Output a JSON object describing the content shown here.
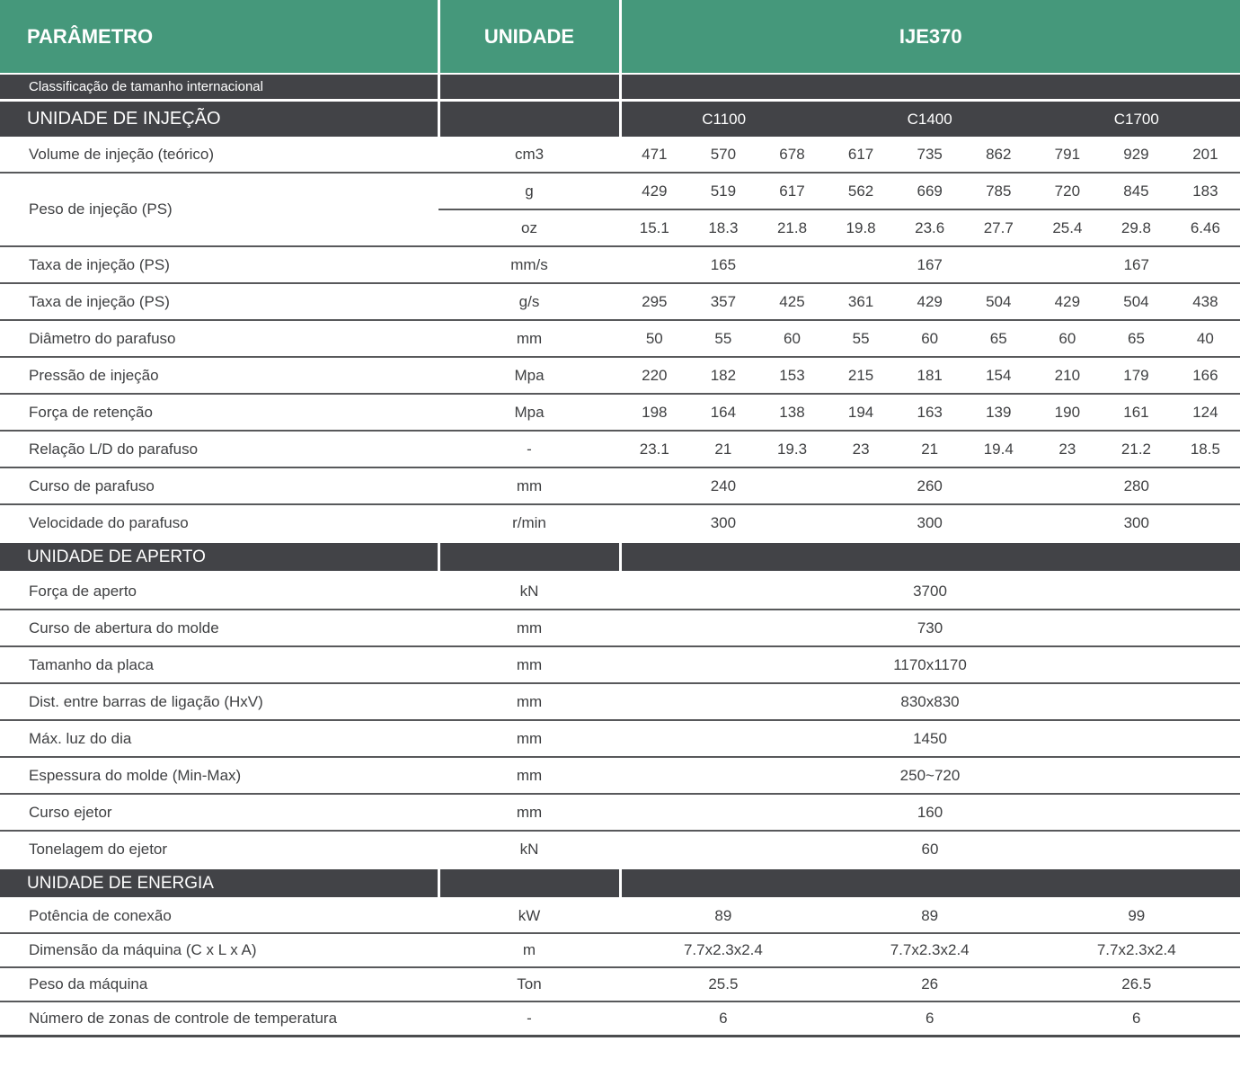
{
  "colors": {
    "header_green": "#45987B",
    "section_dark": "#424347",
    "row_line": "#58595B",
    "text": "#3F4042",
    "bottom_line": "#4B4C4E"
  },
  "header": {
    "parametro": "PARÂMETRO",
    "unidade": "UNIDADE",
    "model": "IJE370"
  },
  "rows": [
    {
      "type": "subheader",
      "label": "Classificação de tamanho internacional"
    },
    {
      "type": "group_header",
      "label": "UNIDADE DE INJEÇÃO",
      "groups": [
        "C1100",
        "C1400",
        "C1700"
      ]
    },
    {
      "type": "data",
      "label": "Volume de injeção (teórico)",
      "unit": "cm3",
      "span": "cell",
      "values": [
        "471",
        "570",
        "678",
        "617",
        "735",
        "862",
        "791",
        "929",
        "201"
      ]
    },
    {
      "type": "data_multi",
      "label": "Peso de injeção (PS)",
      "subrows": [
        {
          "unit": "g",
          "span": "cell",
          "values": [
            "429",
            "519",
            "617",
            "562",
            "669",
            "785",
            "720",
            "845",
            "183"
          ]
        },
        {
          "unit": "oz",
          "span": "cell",
          "values": [
            "15.1",
            "18.3",
            "21.8",
            "19.8",
            "23.6",
            "27.7",
            "25.4",
            "29.8",
            "6.46"
          ]
        }
      ]
    },
    {
      "type": "data",
      "label": "Taxa de injeção (PS)",
      "unit": "mm/s",
      "span": "group",
      "values": [
        "165",
        "167",
        "167"
      ]
    },
    {
      "type": "data",
      "label": "Taxa de injeção (PS)",
      "unit": "g/s",
      "span": "cell",
      "values": [
        "295",
        "357",
        "425",
        "361",
        "429",
        "504",
        "429",
        "504",
        "438"
      ]
    },
    {
      "type": "data",
      "label": "Diâmetro do parafuso",
      "unit": "mm",
      "span": "cell",
      "values": [
        "50",
        "55",
        "60",
        "55",
        "60",
        "65",
        "60",
        "65",
        "40"
      ]
    },
    {
      "type": "data",
      "label": "Pressão de injeção",
      "unit": "Mpa",
      "span": "cell",
      "values": [
        "220",
        "182",
        "153",
        "215",
        "181",
        "154",
        "210",
        "179",
        "166"
      ]
    },
    {
      "type": "data",
      "label": "Força de retenção",
      "unit": "Mpa",
      "span": "cell",
      "values": [
        "198",
        "164",
        "138",
        "194",
        "163",
        "139",
        "190",
        "161",
        "124"
      ]
    },
    {
      "type": "data",
      "label": "Relação L/D do parafuso",
      "unit": "-",
      "span": "cell",
      "values": [
        "23.1",
        "21",
        "19.3",
        "23",
        "21",
        "19.4",
        "23",
        "21.2",
        "18.5"
      ]
    },
    {
      "type": "data",
      "label": "Curso de parafuso",
      "unit": "mm",
      "span": "group",
      "values": [
        "240",
        "260",
        "280"
      ]
    },
    {
      "type": "data",
      "label": "Velocidade do parafuso",
      "unit": "r/min",
      "span": "group",
      "values": [
        "300",
        "300",
        "300"
      ],
      "no_line": true
    },
    {
      "type": "section",
      "label": "UNIDADE DE APERTO"
    },
    {
      "type": "data",
      "label": "Força de aperto",
      "unit": "kN",
      "span": "full",
      "values": [
        "3700"
      ]
    },
    {
      "type": "data",
      "label": "Curso de abertura do molde",
      "unit": "mm",
      "span": "full",
      "values": [
        "730"
      ]
    },
    {
      "type": "data",
      "label": "Tamanho da placa",
      "unit": "mm",
      "span": "full",
      "values": [
        "1170x1170"
      ]
    },
    {
      "type": "data",
      "label": "Dist. entre barras de ligação (HxV)",
      "unit": "mm",
      "span": "full",
      "values": [
        "830x830"
      ]
    },
    {
      "type": "data",
      "label": "Máx. luz do dia",
      "unit": "mm",
      "span": "full",
      "values": [
        "1450"
      ]
    },
    {
      "type": "data",
      "label": "Espessura do molde (Min-Max)",
      "unit": "mm",
      "span": "full",
      "values": [
        "250~720"
      ]
    },
    {
      "type": "data",
      "label": "Curso ejetor",
      "unit": "mm",
      "span": "full",
      "values": [
        "160"
      ]
    },
    {
      "type": "data",
      "label": "Tonelagem do ejetor",
      "unit": "kN",
      "span": "full",
      "values": [
        "60"
      ],
      "no_line": true
    },
    {
      "type": "section",
      "label": "UNIDADE DE ENERGIA"
    },
    {
      "type": "data",
      "label": "Potência de conexão",
      "unit": "kW",
      "span": "group",
      "values": [
        "89",
        "89",
        "99"
      ],
      "short": true
    },
    {
      "type": "data",
      "label": "Dimensão da máquina (C x L x A)",
      "unit": "m",
      "span": "group",
      "values": [
        "7.7x2.3x2.4",
        "7.7x2.3x2.4",
        "7.7x2.3x2.4"
      ],
      "short": true
    },
    {
      "type": "data",
      "label": "Peso da máquina",
      "unit": "Ton",
      "span": "group",
      "values": [
        "25.5",
        "26",
        "26.5"
      ],
      "short": true
    },
    {
      "type": "data",
      "label": "Número de zonas de controle de temperatura",
      "unit": "-",
      "span": "group",
      "values": [
        "6",
        "6",
        "6"
      ],
      "short": true,
      "last": true
    }
  ]
}
